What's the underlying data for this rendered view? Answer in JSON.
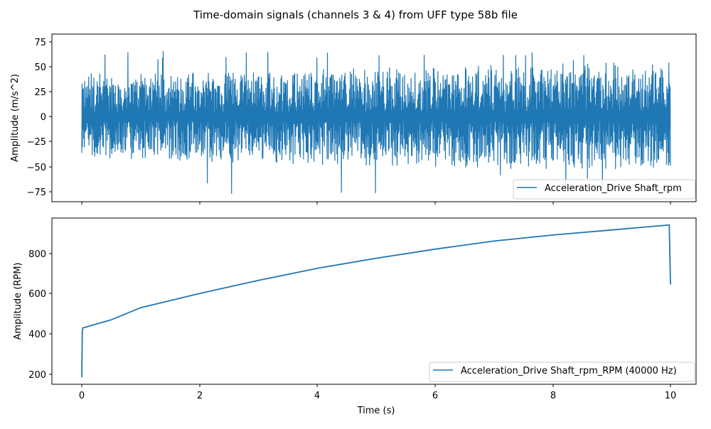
{
  "figure": {
    "title": "Time-domain signals (channels 3 & 4) from UFF type 58b file"
  },
  "chart_data": [
    {
      "type": "line",
      "title": "",
      "xlabel": "",
      "ylabel": "Amplitude (m/s^2)",
      "xlim": [
        -0.5,
        10.5
      ],
      "ylim": [
        -85,
        82
      ],
      "xticks": [
        0,
        2,
        4,
        6,
        8,
        10
      ],
      "yticks": [
        -75,
        -50,
        -25,
        0,
        25,
        50,
        75
      ],
      "grid": false,
      "legend_position": "lower right",
      "series": [
        {
          "name": "Acceleration_Drive Shaft_rpm",
          "color": "#1f77b4",
          "description": "dense random vibration signal, roughly ±40 m/s^2 with peaks to ~65 and troughs to ~-78",
          "x_range": [
            0,
            10
          ],
          "envelope_upper": [
            46,
            45,
            47,
            48,
            50,
            52,
            53,
            55,
            56,
            57,
            58
          ],
          "envelope_lower": [
            -45,
            -46,
            -48,
            -50,
            -52,
            -53,
            -54,
            -55,
            -56,
            -56,
            -55
          ],
          "peak_max": 66,
          "peak_min": -78
        }
      ]
    },
    {
      "type": "line",
      "title": "",
      "xlabel": "Time (s)",
      "ylabel": "Amplitude (RPM)",
      "xlim": [
        -0.5,
        10.5
      ],
      "ylim": [
        155,
        975
      ],
      "xticks": [
        0,
        2,
        4,
        6,
        8,
        10
      ],
      "yticks": [
        200,
        400,
        600,
        800
      ],
      "grid": false,
      "legend_position": "lower right",
      "series": [
        {
          "name": "Acceleration_Drive Shaft_rpm_RPM (40000 Hz)",
          "color": "#1f77b4",
          "x": [
            0,
            0.01,
            0.02,
            0.5,
            1,
            2,
            3,
            4,
            5,
            6,
            7,
            8,
            9,
            9.98,
            10.0
          ],
          "y": [
            185,
            420,
            430,
            470,
            530,
            600,
            665,
            725,
            775,
            820,
            860,
            890,
            915,
            940,
            645
          ]
        }
      ]
    }
  ],
  "axes": {
    "top": {
      "ylabel": "Amplitude (m/s^2)",
      "yticks": [
        "75",
        "50",
        "25",
        "0",
        "−25",
        "−50",
        "−75"
      ],
      "legend": "Acceleration_Drive Shaft_rpm"
    },
    "bottom": {
      "ylabel": "Amplitude (RPM)",
      "yticks": [
        "800",
        "600",
        "400",
        "200"
      ],
      "xticks": [
        "0",
        "2",
        "4",
        "6",
        "8",
        "10"
      ],
      "xlabel": "Time (s)",
      "legend": "Acceleration_Drive Shaft_rpm_RPM (40000 Hz)"
    }
  },
  "colors": {
    "series": "#1f77b4",
    "axes": "#000000",
    "legend_border": "#cccccc"
  }
}
